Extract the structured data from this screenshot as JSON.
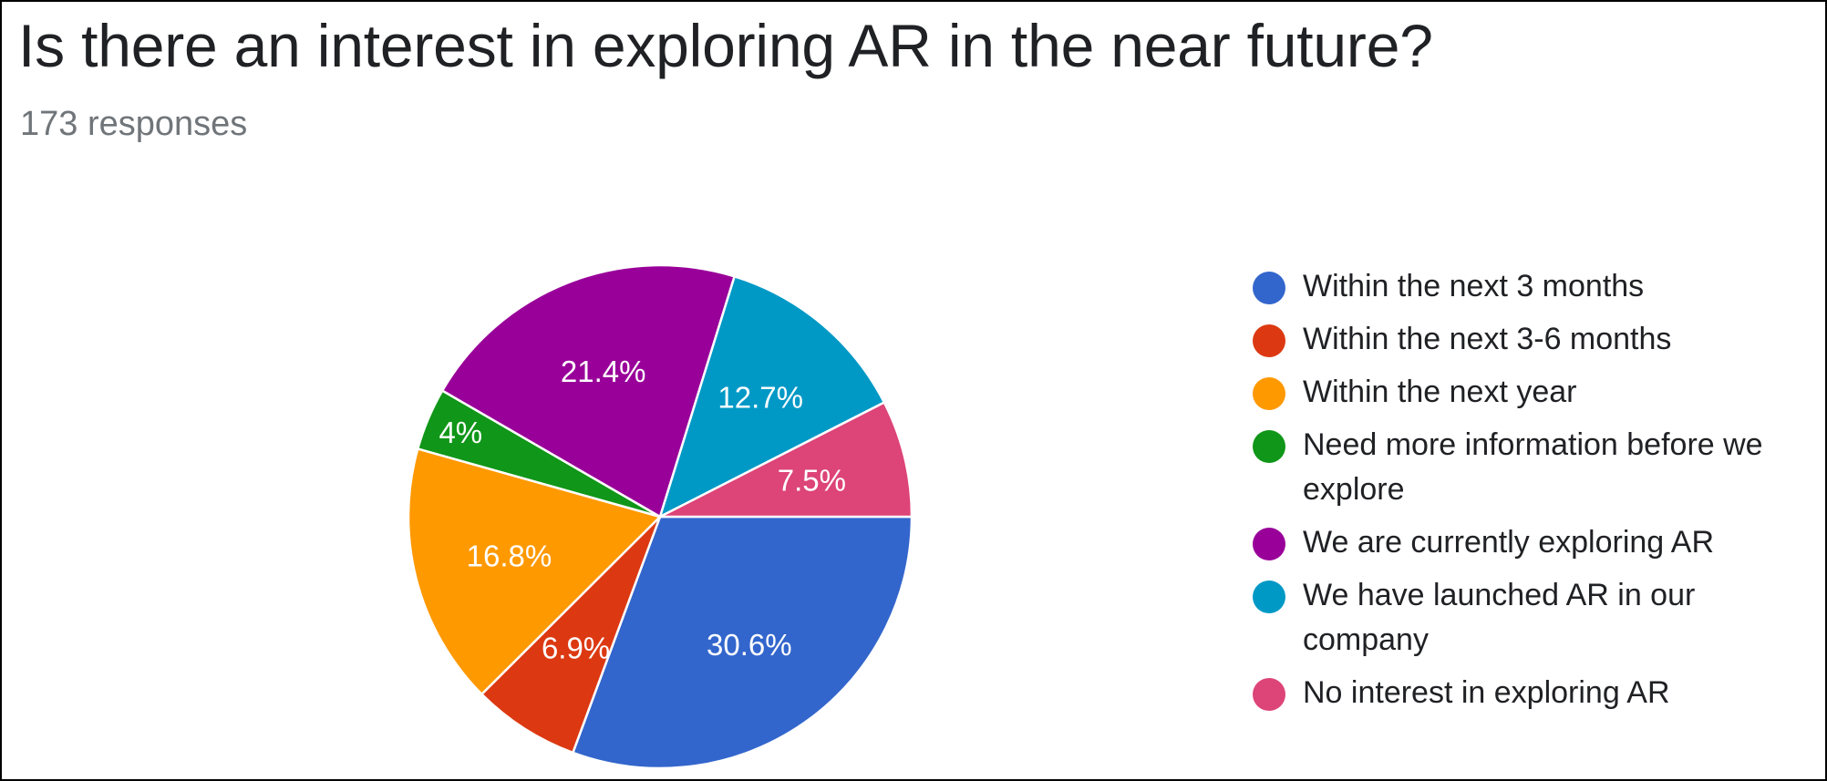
{
  "chart_data": {
    "type": "pie",
    "title": "Is there an interest in exploring AR in the near future?",
    "subtitle": "173 responses",
    "legend_position": "right",
    "slices": [
      {
        "label": "Within the next 3 months",
        "value": 30.6,
        "display": "30.6%",
        "color": "#3366cc"
      },
      {
        "label": "Within the next 3-6 months",
        "value": 6.9,
        "display": "6.9%",
        "color": "#dc3912"
      },
      {
        "label": "Within the next year",
        "value": 16.8,
        "display": "16.8%",
        "color": "#ff9900"
      },
      {
        "label": "Need more information before we explore",
        "value": 4,
        "display": "4%",
        "color": "#109618"
      },
      {
        "label": "We are currently exploring AR",
        "value": 21.4,
        "display": "21.4%",
        "color": "#990099"
      },
      {
        "label": "We have launched AR in our company",
        "value": 12.7,
        "display": "12.7%",
        "color": "#0099c6"
      },
      {
        "label": "No interest in exploring AR",
        "value": 7.5,
        "display": "7.5%",
        "color": "#dd4477"
      }
    ]
  }
}
